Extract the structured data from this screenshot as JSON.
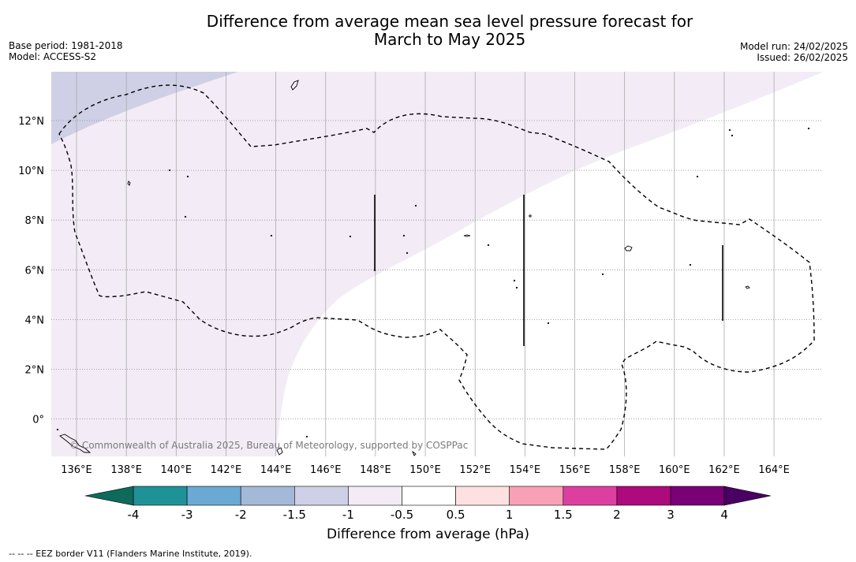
{
  "header": {
    "title_line1": "Difference from average mean sea level pressure forecast for",
    "title_line2": "March to May 2025",
    "base_period": "Base period: 1981-2018",
    "model": "Model: ACCESS-S2",
    "model_run": "Model run: 24/02/2025",
    "issued": "Issued: 26/02/2025"
  },
  "map": {
    "lat_labels": [
      "12°N",
      "10°N",
      "8°N",
      "6°N",
      "4°N",
      "2°N",
      "0°"
    ],
    "lon_labels": [
      "136°E",
      "138°E",
      "140°E",
      "142°E",
      "144°E",
      "146°E",
      "148°E",
      "150°E",
      "152°E",
      "154°E",
      "156°E",
      "158°E",
      "160°E",
      "162°E",
      "164°E"
    ],
    "copyright": "© Commonwealth of Australia 2025, Bureau of Meteorology, supported by COSPPac",
    "fill_colors": {
      "band_-1.5_-1": "#cfd0e6",
      "band_-1_-0.5": "#f3ecf6",
      "band_-0.5_0.5": "#ffffff"
    }
  },
  "colorbar": {
    "labels": [
      "-4",
      "-3",
      "-2",
      "-1.5",
      "-1",
      "-0.5",
      "0.5",
      "1",
      "1.5",
      "2",
      "3",
      "4"
    ],
    "colors": [
      "#1f9298",
      "#69a9d4",
      "#a4b8d8",
      "#cfd0e6",
      "#f3ecf6",
      "#ffffff",
      "#fde0df",
      "#f8a0b6",
      "#dc3fa0",
      "#ad0a7d",
      "#790076"
    ],
    "under_color": "#0e6b5b",
    "over_color": "#4a0063",
    "title": "Difference from average (hPa)"
  },
  "footnote": "-- -- -- EEZ border V11 (Flanders Marine Institute, 2019)."
}
